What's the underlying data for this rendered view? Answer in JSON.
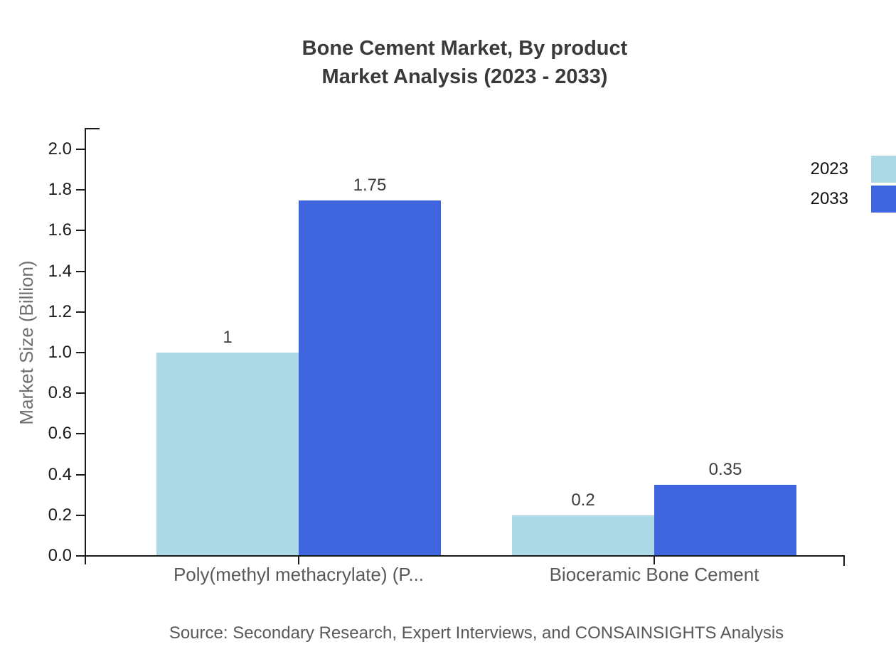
{
  "title": {
    "line1": "Bone Cement Market, By product",
    "line2": "Market Analysis (2023 - 2033)"
  },
  "source_note": "Source: Secondary Research, Expert Interviews, and CONSAINSIGHTS Analysis",
  "chart_data": {
    "type": "bar",
    "title": "Bone Cement Market, By product — Market Analysis (2023 - 2033)",
    "categories": [
      "Poly(methyl methacrylate) (P...",
      "Bioceramic Bone Cement"
    ],
    "series": [
      {
        "name": "2023",
        "color": "#ADD8E6",
        "values": [
          1,
          0.2
        ],
        "value_labels": [
          "1",
          "0.2"
        ]
      },
      {
        "name": "2033",
        "color": "#3E64DE",
        "values": [
          1.75,
          0.35
        ],
        "value_labels": [
          "1.75",
          "0.35"
        ]
      }
    ],
    "xlabel": "",
    "ylabel": "Market Size (Billion)",
    "ylim": [
      0,
      2.0
    ],
    "ytick_step": 0.2,
    "ytick_labels": [
      "0.0",
      "0.2",
      "0.4",
      "0.6",
      "0.8",
      "1.0",
      "1.2",
      "1.4",
      "1.6",
      "1.8",
      "2.0"
    ],
    "grid": false,
    "legend_position": "top-right",
    "axis_color": "#1a1a1a",
    "text_colors": {
      "title": "#3a3a3a",
      "tick": "#1a1a1a",
      "category": "#595959",
      "value_label": "#3c3c3c",
      "ylabel": "#6f6f6f",
      "source": "#595959",
      "legend": "#111111"
    }
  }
}
